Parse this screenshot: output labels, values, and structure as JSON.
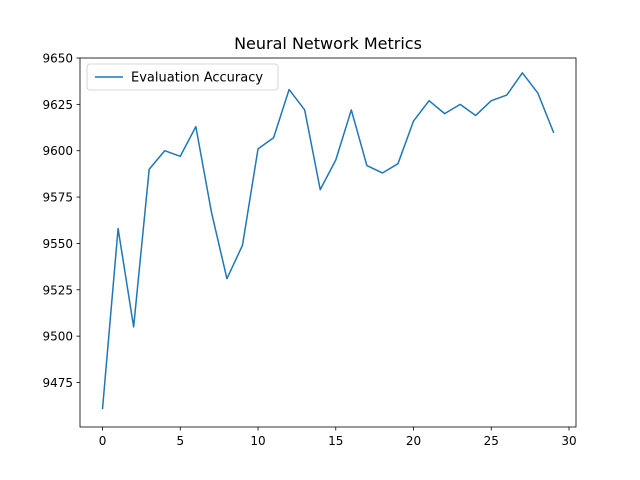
{
  "chart_data": {
    "type": "line",
    "title": "Neural Network Metrics",
    "xlabel": "",
    "ylabel": "",
    "xlim": [
      -1.45,
      30.45
    ],
    "ylim": [
      9451,
      9650
    ],
    "xticks": [
      0,
      5,
      10,
      15,
      20,
      25,
      30
    ],
    "yticks": [
      9475,
      9500,
      9525,
      9550,
      9575,
      9600,
      9625,
      9650
    ],
    "grid": false,
    "legend_position": "top-left",
    "series": [
      {
        "name": "Evaluation Accuracy",
        "color": "#1f77b4",
        "x": [
          0,
          1,
          2,
          3,
          4,
          5,
          6,
          7,
          8,
          9,
          10,
          11,
          12,
          13,
          14,
          15,
          16,
          17,
          18,
          19,
          20,
          21,
          22,
          23,
          24,
          25,
          26,
          27,
          28,
          29
        ],
        "y": [
          9461,
          9558,
          9505,
          9590,
          9600,
          9597,
          9613,
          9567,
          9531,
          9549,
          9601,
          9607,
          9633,
          9622,
          9579,
          9595,
          9622,
          9592,
          9588,
          9593,
          9616,
          9627,
          9620,
          9625,
          9619,
          9627,
          9630,
          9642,
          9631,
          9610
        ]
      }
    ]
  }
}
